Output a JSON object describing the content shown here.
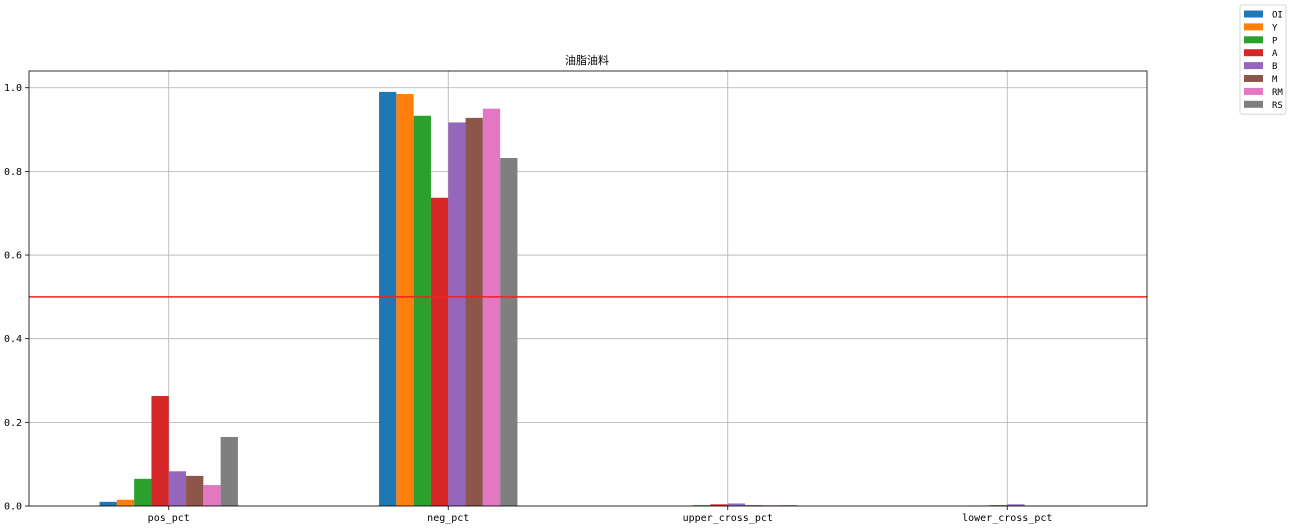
{
  "chart_data": {
    "type": "bar",
    "title": "油脂油料",
    "xlabel": "",
    "ylabel": "",
    "categories": [
      "pos_pct",
      "neg_pct",
      "upper_cross_pct",
      "lower_cross_pct"
    ],
    "ylim": [
      0,
      1.04
    ],
    "yticks": [
      "0.0",
      "0.2",
      "0.4",
      "0.6",
      "0.8",
      "1.0"
    ],
    "ytick_values": [
      0,
      0.2,
      0.4,
      0.6,
      0.8,
      1.0
    ],
    "grid": true,
    "legend_position": "top-right",
    "reference_line": {
      "y": 0.5,
      "color": "#ee2222"
    },
    "series": [
      {
        "name": "OI",
        "color": "#1f77b4",
        "values": [
          0.01,
          0.99,
          0.0,
          0.0
        ]
      },
      {
        "name": "Y",
        "color": "#ff7f0e",
        "values": [
          0.015,
          0.985,
          0.0,
          0.0
        ]
      },
      {
        "name": "P",
        "color": "#2ca02c",
        "values": [
          0.065,
          0.933,
          0.002,
          0.001
        ]
      },
      {
        "name": "A",
        "color": "#d62728",
        "values": [
          0.263,
          0.737,
          0.004,
          0.002
        ]
      },
      {
        "name": "B",
        "color": "#9467bd",
        "values": [
          0.083,
          0.917,
          0.006,
          0.004
        ]
      },
      {
        "name": "M",
        "color": "#8c564b",
        "values": [
          0.072,
          0.928,
          0.002,
          0.001
        ]
      },
      {
        "name": "RM",
        "color": "#e377c2",
        "values": [
          0.05,
          0.95,
          0.002,
          0.001
        ]
      },
      {
        "name": "RS",
        "color": "#7f7f7f",
        "values": [
          0.165,
          0.832,
          0.002,
          0.001
        ]
      }
    ]
  }
}
